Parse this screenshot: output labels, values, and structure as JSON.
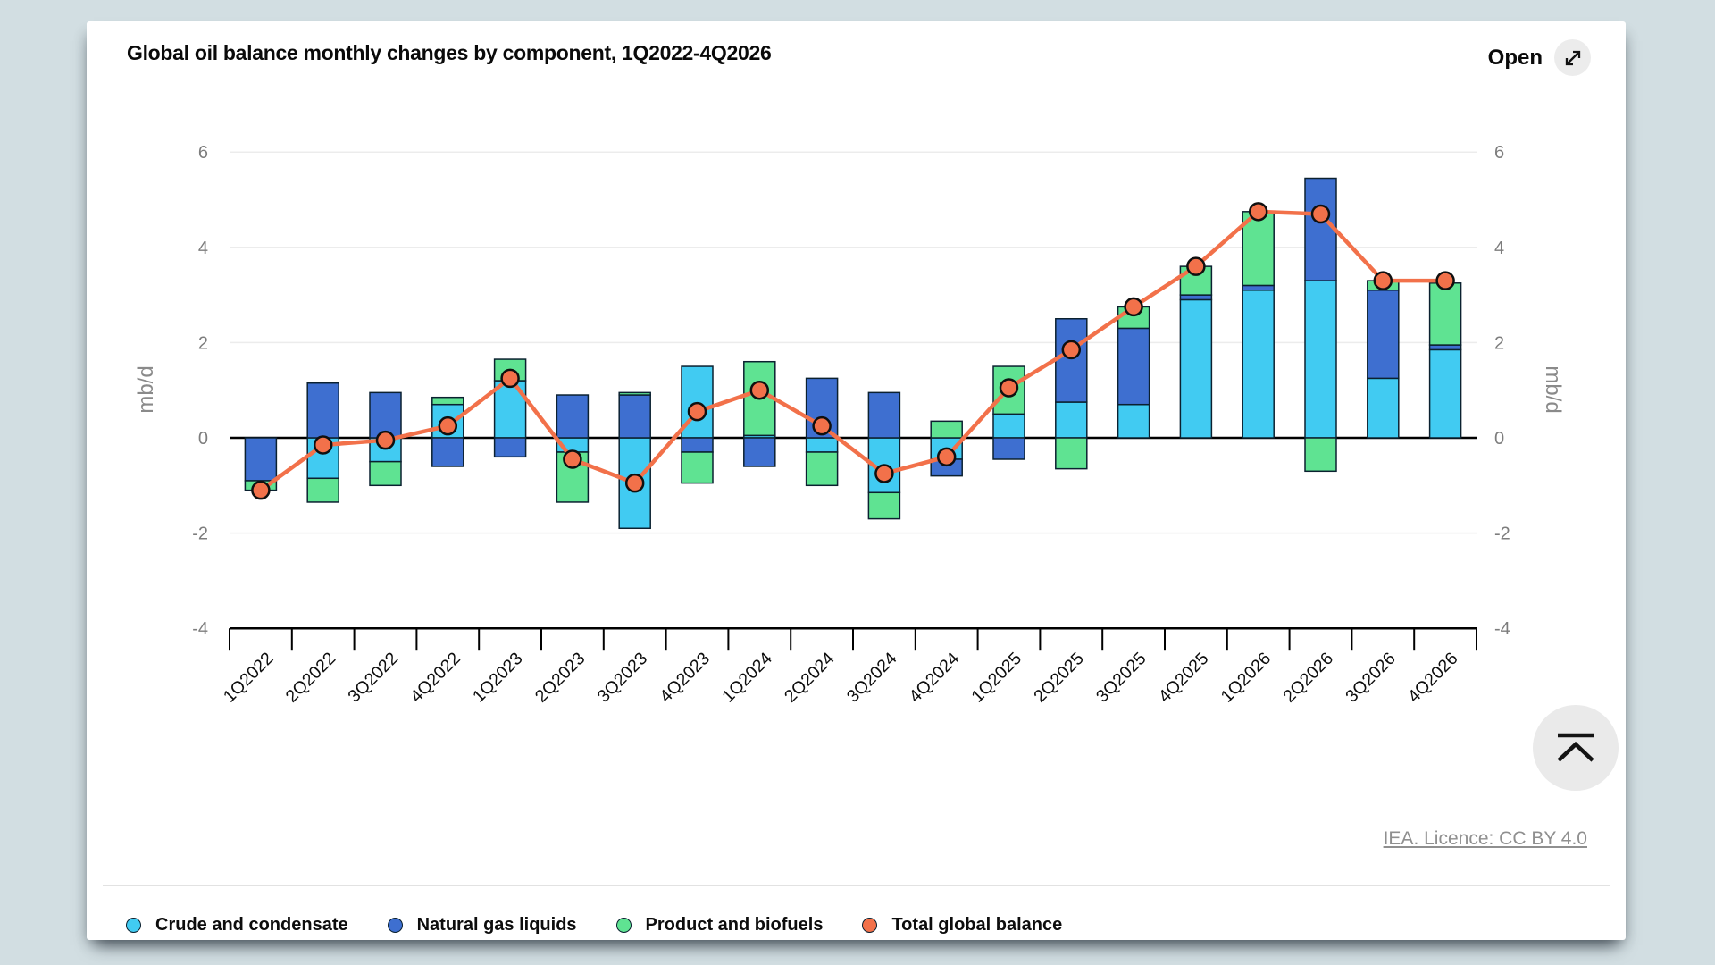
{
  "page": {
    "background_color": "#d2dee2"
  },
  "card": {
    "title": "Global oil balance monthly changes by component, 1Q2022-4Q2026",
    "open_button": {
      "label": "Open",
      "icon": "expand-icon"
    },
    "licence_link": "IEA. Licence: CC BY 4.0",
    "scroll_top_button": {
      "icon": "scroll-to-top-icon"
    }
  },
  "chart_data": {
    "type": "bar",
    "stacked": true,
    "unit": "mb/d",
    "grid": true,
    "legend_position": "bottom-left",
    "ylim": [
      -4,
      6
    ],
    "yticks": [
      6,
      4,
      2,
      0,
      -2,
      -4
    ],
    "ylabel_left": "mb/d",
    "ylabel_right": "mb/d",
    "categories": [
      "1Q2022",
      "2Q2022",
      "3Q2022",
      "4Q2022",
      "1Q2023",
      "2Q2023",
      "3Q2023",
      "4Q2023",
      "1Q2024",
      "2Q2024",
      "3Q2024",
      "4Q2024",
      "1Q2025",
      "2Q2025",
      "3Q2025",
      "4Q2025",
      "1Q2026",
      "2Q2026",
      "3Q2026",
      "4Q2026"
    ],
    "series": [
      {
        "name": "Crude and condensate",
        "color": "#41CBF2",
        "values": [
          0,
          -0.85,
          -0.5,
          0.7,
          1.2,
          -0.3,
          -1.9,
          1.5,
          0.05,
          -0.3,
          -1.15,
          -0.45,
          0.5,
          0.75,
          0.7,
          2.9,
          3.1,
          3.3,
          1.25,
          1.85
        ]
      },
      {
        "name": "Natural gas liquids",
        "color": "#3E6FD0",
        "values": [
          -0.9,
          1.15,
          0.95,
          -0.6,
          -0.4,
          0.9,
          0.9,
          -0.3,
          -0.6,
          1.25,
          0.95,
          -0.35,
          -0.45,
          1.75,
          1.6,
          0.1,
          0.1,
          2.15,
          1.85,
          0.1
        ]
      },
      {
        "name": "Product and biofuels",
        "color": "#5FE392",
        "values": [
          -0.2,
          -0.5,
          -0.5,
          0.15,
          0.45,
          -1.05,
          0.05,
          -0.65,
          1.55,
          -0.7,
          -0.55,
          0.35,
          1.0,
          -0.65,
          0.45,
          0.6,
          1.55,
          -0.7,
          0.2,
          1.3
        ]
      }
    ],
    "line_series": {
      "name": "Total global balance",
      "color": "#F2714A",
      "values": [
        -1.1,
        -0.15,
        -0.05,
        0.25,
        1.25,
        -0.45,
        -0.95,
        0.55,
        1.0,
        0.25,
        -0.75,
        -0.4,
        1.05,
        1.85,
        2.75,
        3.6,
        4.75,
        4.7,
        3.3,
        3.3
      ]
    }
  }
}
